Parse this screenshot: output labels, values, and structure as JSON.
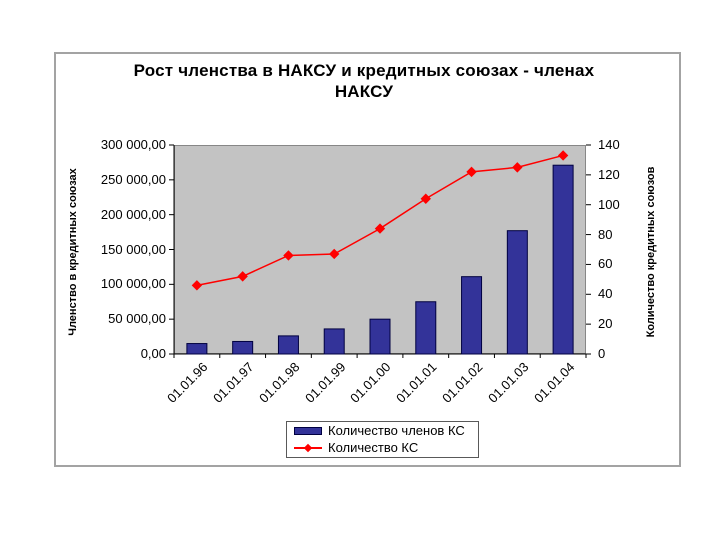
{
  "chart_data": {
    "type": "bar+line",
    "title": "Рост членства в НАКСУ и кредитных союзах - членах\nНАКСУ",
    "categories": [
      "01.01.96",
      "01.01.97",
      "01.01.98",
      "01.01.99",
      "01.01.00",
      "01.01.01",
      "01.01.02",
      "01.01.03",
      "01.01.04"
    ],
    "series": [
      {
        "name": "Количество членов КС",
        "type": "bar",
        "axis": "left",
        "color": "#333399",
        "border_color": "#000040",
        "values": [
          15000,
          18000,
          26000,
          36000,
          50000,
          75000,
          111000,
          177000,
          271000
        ]
      },
      {
        "name": "Количество КС",
        "type": "line",
        "axis": "right",
        "color": "#ff0000",
        "marker": "diamond",
        "values": [
          46,
          52,
          66,
          67,
          84,
          104,
          122,
          125,
          133
        ]
      }
    ],
    "left_axis": {
      "title": "Членство в кредитных союзах",
      "min": 0,
      "max": 300000,
      "tick_step": 50000,
      "tick_labels": [
        "0,00",
        "50 000,00",
        "100 000,00",
        "150 000,00",
        "200 000,00",
        "250 000,00",
        "300 000,00"
      ]
    },
    "right_axis": {
      "title": "Количество кредитных союзов",
      "min": 0,
      "max": 140,
      "tick_step": 20,
      "tick_labels": [
        "0",
        "20",
        "40",
        "60",
        "80",
        "100",
        "120",
        "140"
      ]
    },
    "plot_background": "#c3c3c3",
    "grid": "off",
    "legend_position": "bottom"
  }
}
